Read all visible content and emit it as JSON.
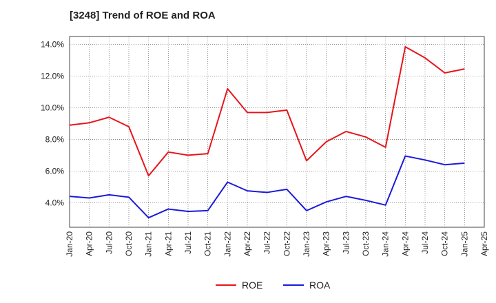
{
  "chart_data": {
    "type": "line",
    "title": "[3248]  Trend of ROE and ROA",
    "xlabel": "",
    "ylabel": "",
    "x_ticks": [
      "Jan-20",
      "Apr-20",
      "Jul-20",
      "Oct-20",
      "Jan-21",
      "Apr-21",
      "Jul-21",
      "Oct-21",
      "Jan-22",
      "Apr-22",
      "Jul-22",
      "Oct-22",
      "Jan-23",
      "Apr-23",
      "Jul-23",
      "Oct-23",
      "Jan-24",
      "Apr-24",
      "Jul-24",
      "Oct-24",
      "Jan-25",
      "Apr-25"
    ],
    "y_ticks": [
      "4.0%",
      "6.0%",
      "8.0%",
      "10.0%",
      "12.0%",
      "14.0%"
    ],
    "y_tick_values": [
      4,
      6,
      8,
      10,
      12,
      14
    ],
    "ylim": [
      2.45,
      14.5
    ],
    "grid": true,
    "legend_position": "bottom-center",
    "categories": [
      "Jan-20",
      "Apr-20",
      "Jul-20",
      "Oct-20",
      "Jan-21",
      "Apr-21",
      "Jul-21",
      "Oct-21",
      "Jan-22",
      "Apr-22",
      "Jul-22",
      "Oct-22",
      "Jan-23",
      "Apr-23",
      "Jul-23",
      "Oct-23",
      "Jan-24",
      "Apr-24",
      "Jul-24",
      "Oct-24",
      "Jan-25"
    ],
    "series": [
      {
        "name": "ROE",
        "color": "#e8141b",
        "values": [
          8.9,
          9.05,
          9.4,
          8.8,
          5.7,
          7.2,
          7.0,
          7.1,
          11.2,
          9.7,
          9.7,
          9.85,
          6.65,
          7.85,
          8.5,
          8.15,
          7.5,
          13.85,
          13.15,
          12.2,
          12.45
        ]
      },
      {
        "name": "ROA",
        "color": "#1a1adb",
        "values": [
          4.4,
          4.3,
          4.5,
          4.35,
          3.05,
          3.6,
          3.45,
          3.5,
          5.3,
          4.75,
          4.65,
          4.85,
          3.5,
          4.05,
          4.4,
          4.15,
          3.85,
          6.95,
          6.7,
          6.4,
          6.5
        ]
      }
    ]
  }
}
